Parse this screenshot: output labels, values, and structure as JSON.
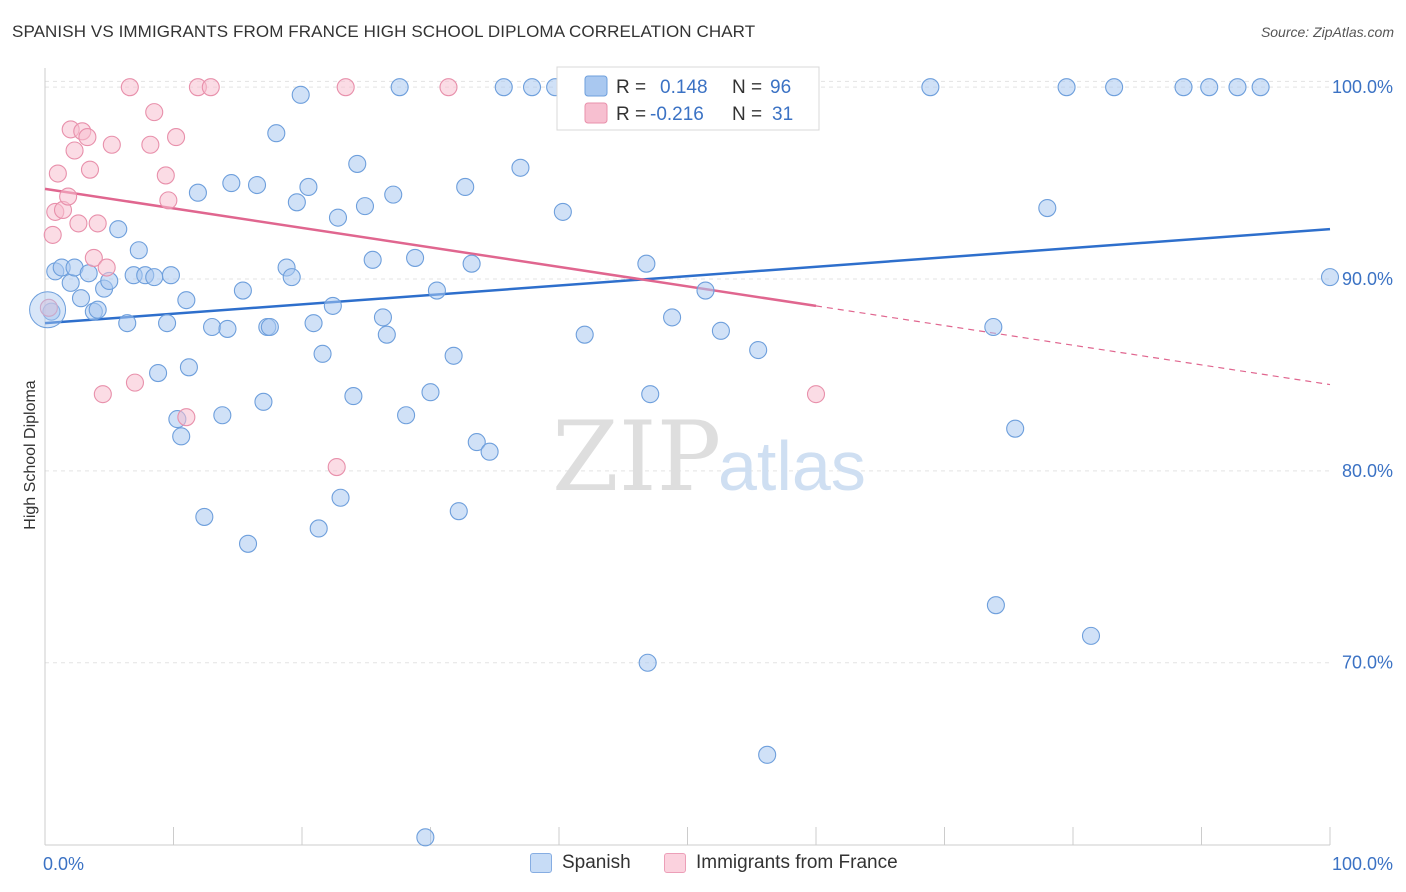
{
  "title": "SPANISH VS IMMIGRANTS FROM FRANCE HIGH SCHOOL DIPLOMA CORRELATION CHART",
  "source": "Source: ZipAtlas.com",
  "watermark": {
    "zip": "ZIP",
    "atlas": "atlas"
  },
  "legend": {
    "r_label": "R =",
    "n_label": "N =",
    "entries": [
      {
        "r": "0.148",
        "n": "96",
        "color": "#a9c8f0",
        "stroke": "#6e9fdc",
        "text_color": "#3b72c4"
      },
      {
        "r": "-0.216",
        "n": "31",
        "color": "#f7bfd0",
        "stroke": "#e890ab",
        "text_color": "#3b72c4"
      }
    ]
  },
  "bottom_legend": [
    {
      "label": "Spanish",
      "color": "#c7dcf6",
      "stroke": "#86ade2"
    },
    {
      "label": "Immigrants from France",
      "color": "#fbd2de",
      "stroke": "#ec9fb8"
    }
  ],
  "chart_data": {
    "type": "scatter",
    "title": "SPANISH VS IMMIGRANTS FROM FRANCE HIGH SCHOOL DIPLOMA CORRELATION CHART",
    "xlabel": "",
    "ylabel": "High School Diploma",
    "xlim": [
      0,
      100
    ],
    "ylim": [
      60.5,
      101
    ],
    "x_tick_labels": [
      "0.0%",
      "100.0%"
    ],
    "y_ticks": [
      70,
      80,
      90,
      100
    ],
    "y_tick_labels": [
      "70.0%",
      "80.0%",
      "90.0%",
      "100.0%"
    ],
    "grid": true,
    "series": [
      {
        "name": "Spanish",
        "color": "#a9c8f0",
        "stroke": "#6e9fdc",
        "trend": {
          "x0": 0,
          "y0": 87.7,
          "x1": 100,
          "y1": 92.6,
          "color": "#2e6fcc"
        },
        "points": [
          [
            0.5,
            88.3
          ],
          [
            0.8,
            90.4
          ],
          [
            1.3,
            90.6
          ],
          [
            2.0,
            89.8
          ],
          [
            2.3,
            90.6
          ],
          [
            2.8,
            89.0
          ],
          [
            3.4,
            90.3
          ],
          [
            3.8,
            88.3
          ],
          [
            4.1,
            88.4
          ],
          [
            4.6,
            89.5
          ],
          [
            5.0,
            89.9
          ],
          [
            5.7,
            92.6
          ],
          [
            6.4,
            87.7
          ],
          [
            6.9,
            90.2
          ],
          [
            7.3,
            91.5
          ],
          [
            7.8,
            90.2
          ],
          [
            8.5,
            90.1
          ],
          [
            8.8,
            85.1
          ],
          [
            9.5,
            87.7
          ],
          [
            9.8,
            90.2
          ],
          [
            10.3,
            82.7
          ],
          [
            10.6,
            81.8
          ],
          [
            11.0,
            88.9
          ],
          [
            11.2,
            85.4
          ],
          [
            11.9,
            94.5
          ],
          [
            12.4,
            77.6
          ],
          [
            13.0,
            87.5
          ],
          [
            13.8,
            82.9
          ],
          [
            14.2,
            87.4
          ],
          [
            14.5,
            95.0
          ],
          [
            15.4,
            89.4
          ],
          [
            15.8,
            76.2
          ],
          [
            16.5,
            94.9
          ],
          [
            17.0,
            83.6
          ],
          [
            17.3,
            87.5
          ],
          [
            17.5,
            87.5
          ],
          [
            18.0,
            97.6
          ],
          [
            18.8,
            90.6
          ],
          [
            19.2,
            90.1
          ],
          [
            19.6,
            94.0
          ],
          [
            19.9,
            99.6
          ],
          [
            20.5,
            94.8
          ],
          [
            20.9,
            87.7
          ],
          [
            21.3,
            77.0
          ],
          [
            21.6,
            86.1
          ],
          [
            22.4,
            88.6
          ],
          [
            22.8,
            93.2
          ],
          [
            23.0,
            78.6
          ],
          [
            24.0,
            83.9
          ],
          [
            24.3,
            96.0
          ],
          [
            24.9,
            93.8
          ],
          [
            25.5,
            91.0
          ],
          [
            26.3,
            88.0
          ],
          [
            26.6,
            87.1
          ],
          [
            27.1,
            94.4
          ],
          [
            27.6,
            100.0
          ],
          [
            28.1,
            82.9
          ],
          [
            28.8,
            91.1
          ],
          [
            29.6,
            60.9
          ],
          [
            30.0,
            84.1
          ],
          [
            30.5,
            89.4
          ],
          [
            31.8,
            86.0
          ],
          [
            32.2,
            77.9
          ],
          [
            32.7,
            94.8
          ],
          [
            33.2,
            90.8
          ],
          [
            33.6,
            81.5
          ],
          [
            34.6,
            81.0
          ],
          [
            35.7,
            100.0
          ],
          [
            37.0,
            95.8
          ],
          [
            37.9,
            100.0
          ],
          [
            39.7,
            100.0
          ],
          [
            40.3,
            93.5
          ],
          [
            42.0,
            87.1
          ],
          [
            46.8,
            90.8
          ],
          [
            46.9,
            70.0
          ],
          [
            47.1,
            84.0
          ],
          [
            48.3,
            100.0
          ],
          [
            48.8,
            88.0
          ],
          [
            51.4,
            89.4
          ],
          [
            52.6,
            87.3
          ],
          [
            55.5,
            86.3
          ],
          [
            56.2,
            65.2
          ],
          [
            56.8,
            100.0
          ],
          [
            68.9,
            100.0
          ],
          [
            73.8,
            87.5
          ],
          [
            74.0,
            73.0
          ],
          [
            75.5,
            82.2
          ],
          [
            78.0,
            93.7
          ],
          [
            79.5,
            100.0
          ],
          [
            81.4,
            71.4
          ],
          [
            83.2,
            100.0
          ],
          [
            88.6,
            100.0
          ],
          [
            90.6,
            100.0
          ],
          [
            92.8,
            100.0
          ],
          [
            94.6,
            100.0
          ],
          [
            100.0,
            90.1
          ]
        ]
      },
      {
        "name": "Immigrants from France",
        "color": "#f7bfd0",
        "stroke": "#e890ab",
        "trend": {
          "x0": 0,
          "y0": 94.7,
          "x1": 60,
          "y1": 88.6,
          "dash_x1": 100,
          "dash_y1": 84.5,
          "color": "#e0668f"
        },
        "points": [
          [
            0.3,
            88.5
          ],
          [
            0.6,
            92.3
          ],
          [
            0.8,
            93.5
          ],
          [
            1.0,
            95.5
          ],
          [
            1.4,
            93.6
          ],
          [
            1.8,
            94.3
          ],
          [
            2.0,
            97.8
          ],
          [
            2.3,
            96.7
          ],
          [
            2.6,
            92.9
          ],
          [
            2.9,
            97.7
          ],
          [
            3.3,
            97.4
          ],
          [
            3.5,
            95.7
          ],
          [
            3.8,
            91.1
          ],
          [
            4.1,
            92.9
          ],
          [
            4.5,
            84.0
          ],
          [
            4.8,
            90.6
          ],
          [
            5.2,
            97.0
          ],
          [
            6.6,
            100.0
          ],
          [
            7.0,
            84.6
          ],
          [
            8.2,
            97.0
          ],
          [
            8.5,
            98.7
          ],
          [
            9.4,
            95.4
          ],
          [
            9.6,
            94.1
          ],
          [
            10.2,
            97.4
          ],
          [
            11.0,
            82.8
          ],
          [
            11.9,
            100.0
          ],
          [
            12.9,
            100.0
          ],
          [
            22.7,
            80.2
          ],
          [
            23.4,
            100.0
          ],
          [
            31.4,
            100.0
          ],
          [
            60.0,
            84.0
          ]
        ]
      }
    ]
  }
}
